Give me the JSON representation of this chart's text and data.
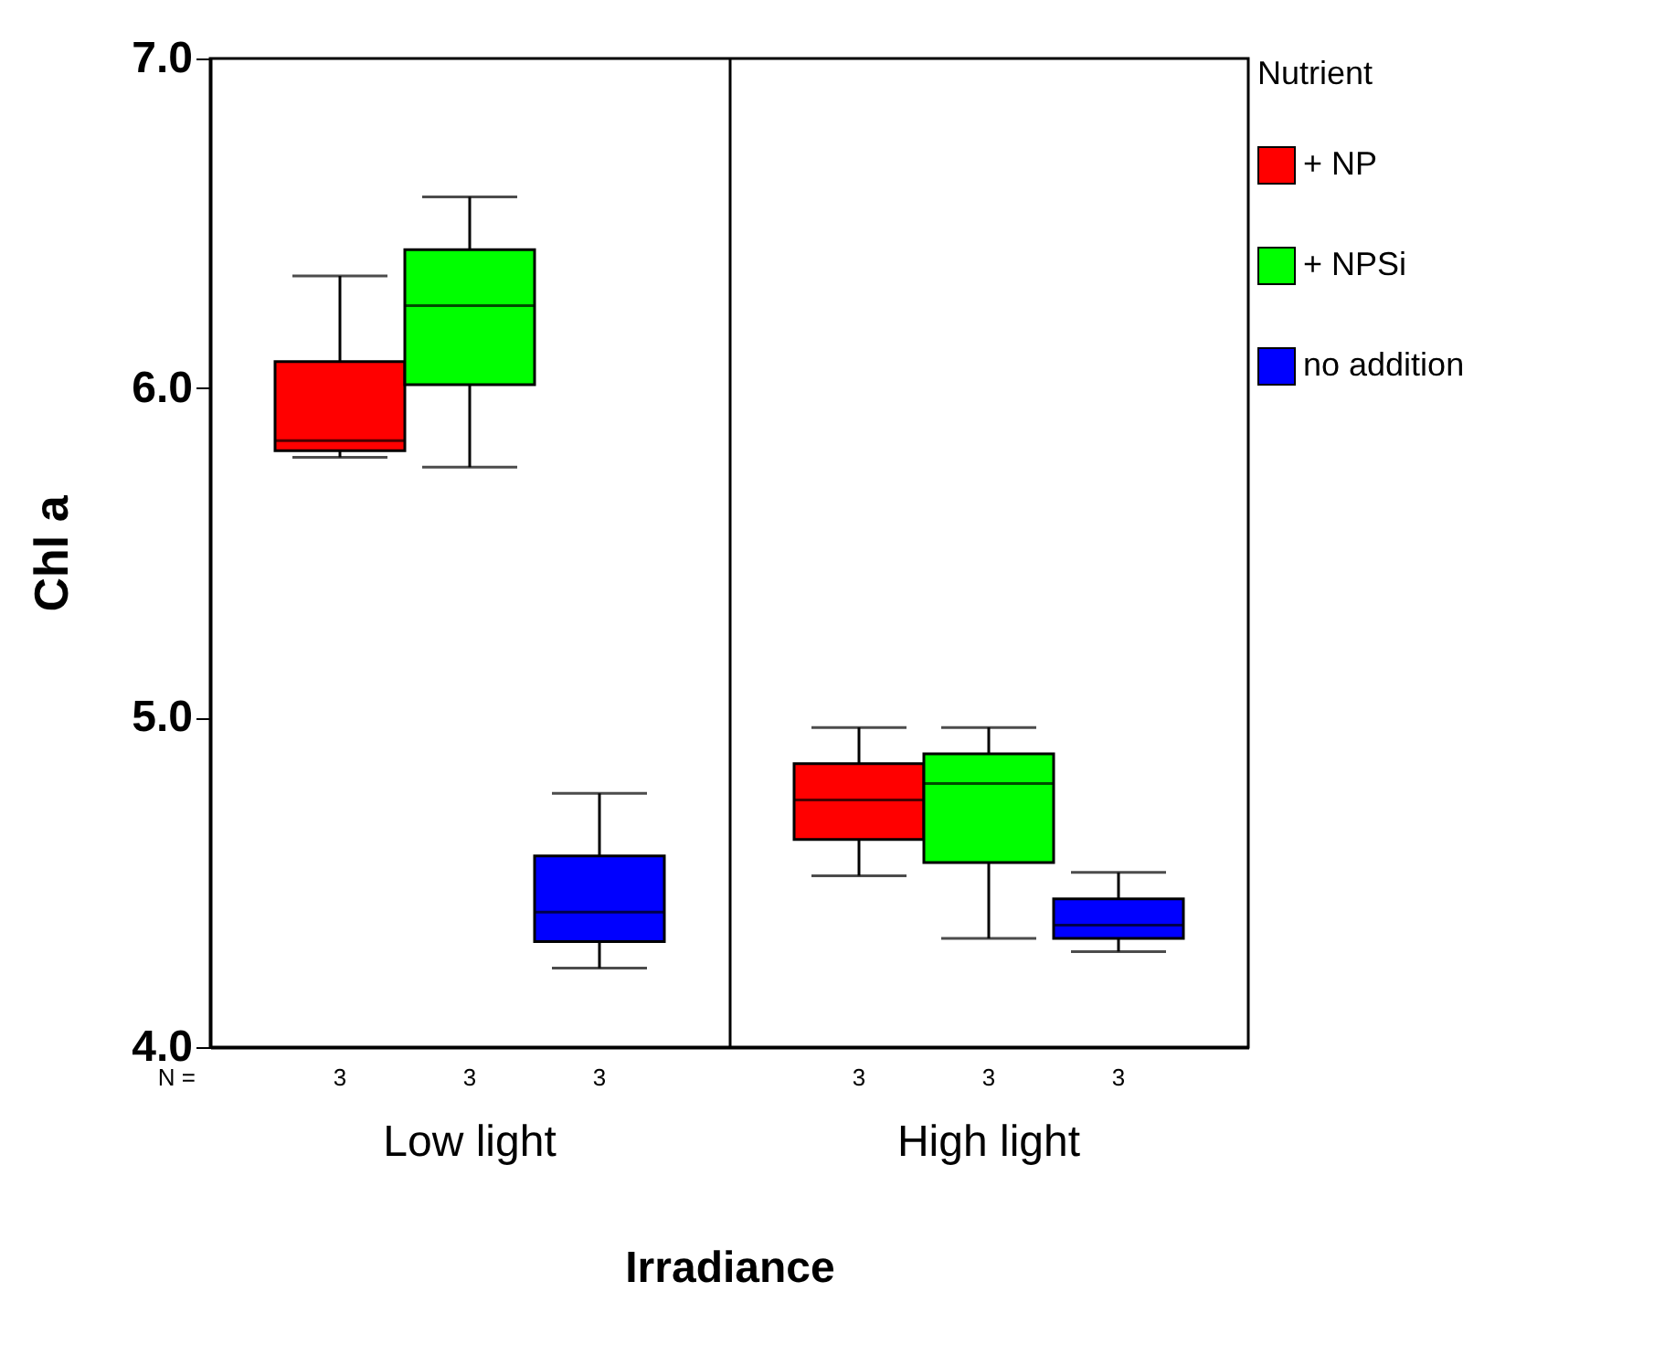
{
  "chart_data": {
    "type": "box",
    "xlabel": "Irradiance",
    "ylabel": "Chl a",
    "legend_title": "Nutrient",
    "legend": "right",
    "grid": "x",
    "categories": [
      "Low light",
      "High light"
    ],
    "ylim": [
      4,
      7
    ],
    "yticks": [
      {
        "value": 4,
        "label": "4.0"
      },
      {
        "value": 5,
        "label": "5.0"
      },
      {
        "value": 6,
        "label": "6.0"
      },
      {
        "value": 7,
        "label": "7.0"
      }
    ],
    "series": [
      {
        "name": "+ NP",
        "color": "#ff0000",
        "boxes": [
          {
            "low": 5.79,
            "q1": 5.81,
            "median": 5.84,
            "q3": 6.08,
            "high": 6.34
          },
          {
            "low": 4.52,
            "q1": 4.63,
            "median": 4.75,
            "q3": 4.86,
            "high": 4.97
          }
        ]
      },
      {
        "name": "+ NPSi",
        "color": "#00ff00",
        "boxes": [
          {
            "low": 5.76,
            "q1": 6.01,
            "median": 6.25,
            "q3": 6.42,
            "high": 6.58
          },
          {
            "low": 4.33,
            "q1": 4.56,
            "median": 4.8,
            "q3": 4.89,
            "high": 4.97
          }
        ]
      },
      {
        "name": "no addition",
        "color": "#0000ff",
        "boxes": [
          {
            "low": 4.24,
            "q1": 4.32,
            "median": 4.41,
            "q3": 4.58,
            "high": 4.77
          },
          {
            "low": 4.29,
            "q1": 4.33,
            "median": 4.37,
            "q3": 4.45,
            "high": 4.53
          }
        ]
      }
    ],
    "annotations": [
      "N =",
      "3",
      "3",
      "3",
      "3",
      "3",
      "3"
    ]
  }
}
